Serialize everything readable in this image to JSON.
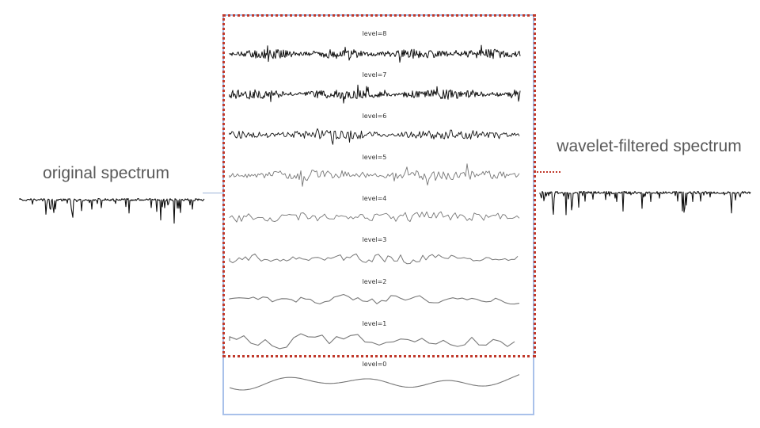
{
  "labels": {
    "original": "original spectrum",
    "filtered": "wavelet-filtered spectrum"
  },
  "levels": [
    {
      "label": "level=8"
    },
    {
      "label": "level=7"
    },
    {
      "label": "level=6"
    },
    {
      "label": "level=5"
    },
    {
      "label": "level=4"
    },
    {
      "label": "level=3"
    },
    {
      "label": "level=2"
    },
    {
      "label": "level=1"
    },
    {
      "label": "level=0"
    }
  ],
  "colors": {
    "box_border": "#a9c1ea",
    "dotted_highlight": "#c0392b",
    "connector": "#9db3d8",
    "signal_dark": "#111111",
    "signal_light": "#777777"
  }
}
